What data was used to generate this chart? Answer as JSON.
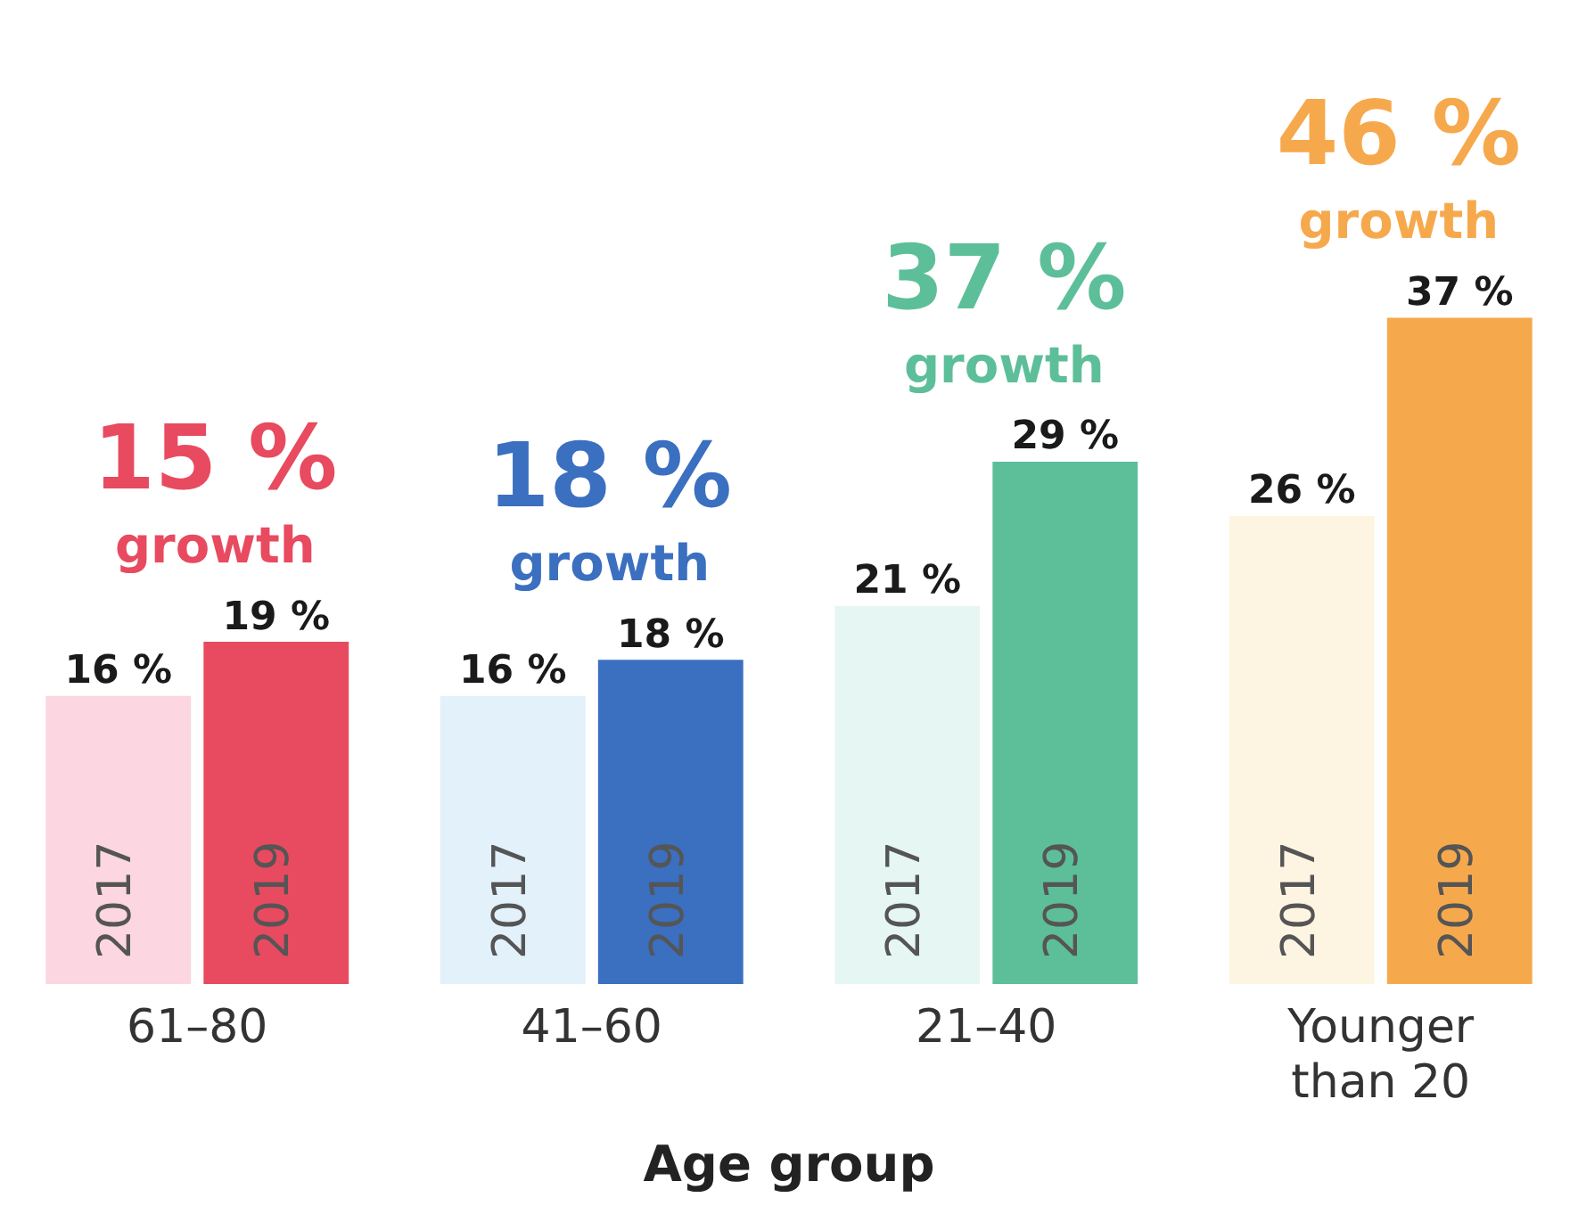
{
  "chart_data": {
    "type": "bar",
    "xlabel": "Age group",
    "categories": [
      "61–80",
      "41–60",
      "21–40",
      "Younger than 20"
    ],
    "series": [
      {
        "name": "2017",
        "colors": [
          "#fcd6e0",
          "#e3f1fb",
          "#e6f7f3",
          "#fdf5e2"
        ],
        "values": [
          16,
          16,
          21,
          26
        ],
        "value_labels": [
          "16 %",
          "16 %",
          "21 %",
          "26 %"
        ]
      },
      {
        "name": "2019",
        "colors": [
          "#e84a5f",
          "#3b6fc0",
          "#5dbf9a",
          "#f6a94c"
        ],
        "values": [
          19,
          18,
          29,
          37
        ],
        "value_labels": [
          "19 %",
          "18 %",
          "29 %",
          "37 %"
        ]
      }
    ],
    "annotations": [
      "15 %",
      "growth",
      "18 %",
      "growth",
      "37 %",
      "growth",
      "46 %",
      "growth"
    ],
    "tick_labels": "x",
    "grid": false,
    "legend": false
  }
}
